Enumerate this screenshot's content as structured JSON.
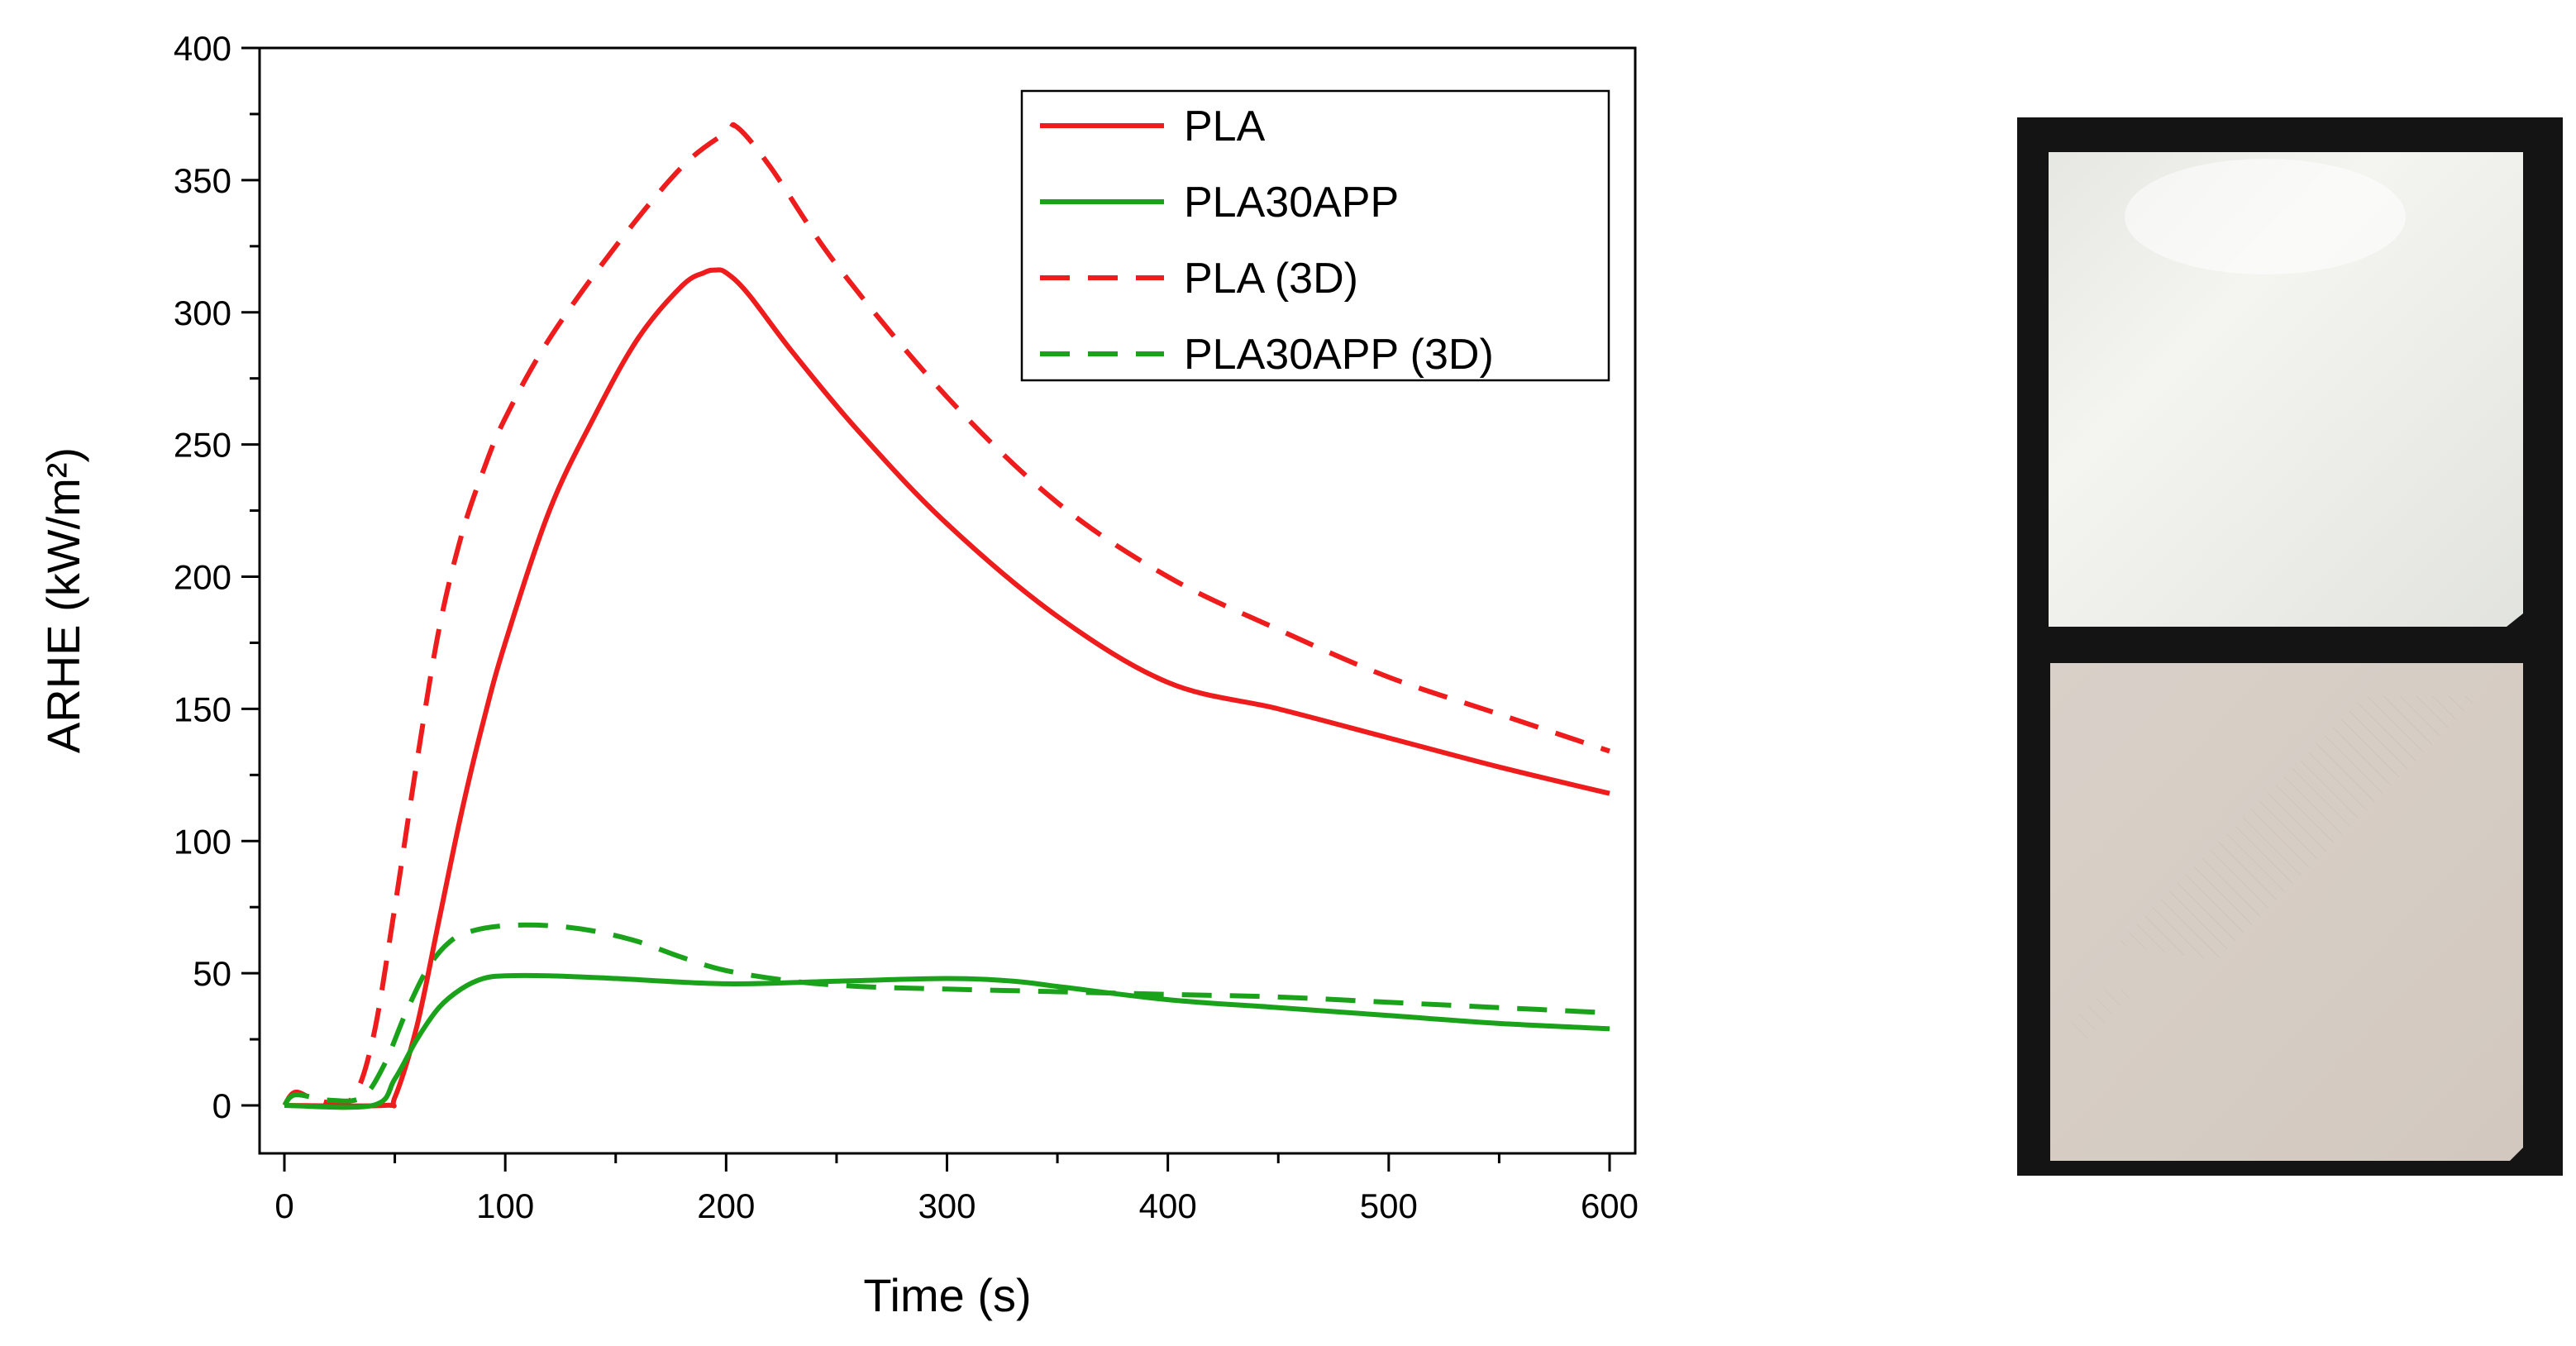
{
  "chart_data": {
    "type": "line",
    "title": "",
    "xlabel": "Time (s)",
    "ylabel": "ARHE (kW/m²)",
    "xlim": [
      0,
      600
    ],
    "ylim": [
      0,
      400
    ],
    "xticks": [
      0,
      100,
      200,
      300,
      400,
      500,
      600
    ],
    "yticks": [
      0,
      50,
      100,
      150,
      200,
      250,
      300,
      350,
      400
    ],
    "grid": false,
    "legend_position": "top-right",
    "series": [
      {
        "name": "PLA",
        "color": "#ee1c1c",
        "style": "solid",
        "x": [
          0,
          45,
          50,
          60,
          70,
          80,
          90,
          100,
          120,
          140,
          160,
          180,
          190,
          195,
          200,
          210,
          230,
          260,
          300,
          350,
          400,
          450,
          500,
          550,
          600
        ],
        "y": [
          0,
          0,
          3,
          30,
          70,
          110,
          145,
          175,
          225,
          260,
          290,
          310,
          315,
          316,
          315,
          307,
          285,
          255,
          220,
          185,
          160,
          150,
          139,
          128,
          118
        ]
      },
      {
        "name": "PLA30APP",
        "color": "#1aa31a",
        "style": "solid",
        "x": [
          0,
          40,
          50,
          60,
          70,
          80,
          90,
          100,
          120,
          150,
          200,
          250,
          300,
          330,
          350,
          400,
          450,
          500,
          550,
          600
        ],
        "y": [
          0,
          0,
          10,
          25,
          37,
          44,
          48,
          49,
          49,
          48,
          46,
          47,
          48,
          47,
          45,
          40,
          37,
          34,
          31,
          29
        ]
      },
      {
        "name": "PLA (3D)",
        "color": "#ee1c1c",
        "style": "dashed",
        "x": [
          0,
          5,
          15,
          30,
          40,
          50,
          60,
          70,
          80,
          90,
          100,
          120,
          150,
          180,
          200,
          205,
          220,
          250,
          300,
          350,
          400,
          450,
          500,
          550,
          600
        ],
        "y": [
          0,
          5,
          2,
          2,
          25,
          75,
          130,
          180,
          215,
          240,
          260,
          290,
          325,
          355,
          368,
          370,
          355,
          318,
          268,
          228,
          200,
          180,
          162,
          148,
          134
        ]
      },
      {
        "name": "PLA30APP (3D)",
        "color": "#1aa31a",
        "style": "dashed",
        "x": [
          0,
          5,
          20,
          35,
          45,
          55,
          65,
          75,
          85,
          100,
          120,
          140,
          160,
          180,
          200,
          230,
          260,
          300,
          350,
          400,
          450,
          500,
          550,
          600
        ],
        "y": [
          0,
          4,
          2,
          3,
          15,
          35,
          52,
          62,
          66,
          68,
          68,
          66,
          62,
          56,
          51,
          47,
          45,
          44,
          43,
          42,
          41,
          39,
          37,
          35
        ]
      }
    ]
  },
  "photo": {
    "description": "",
    "top_sample_color": "#e9e9e4",
    "bottom_sample_color": "#d8cfc6",
    "background_color": "#141414"
  }
}
